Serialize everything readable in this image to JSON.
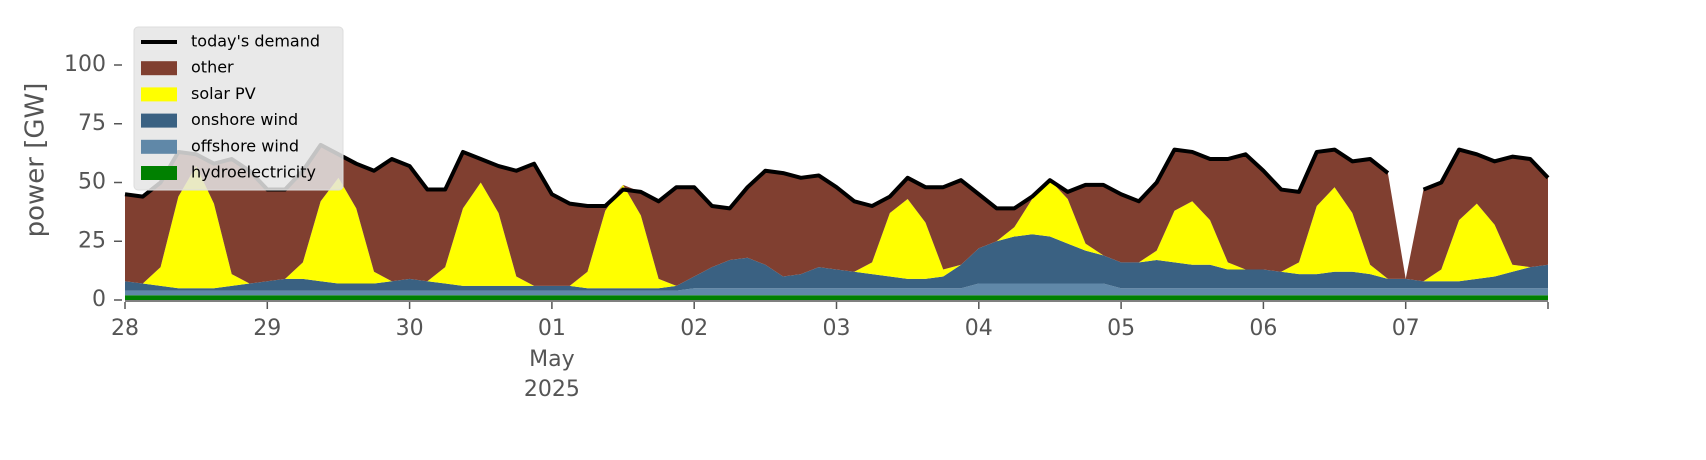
{
  "chart_data": {
    "type": "area",
    "ylabel": "power [GW]",
    "xlim": [
      "2025-04-28",
      "2025-05-08"
    ],
    "xticks": [
      {
        "value": "2025-04-28",
        "label": "28"
      },
      {
        "value": "2025-04-29",
        "label": "29"
      },
      {
        "value": "2025-04-30",
        "label": "30"
      },
      {
        "value": "2025-05-01",
        "label": "01"
      },
      {
        "value": "2025-05-02",
        "label": "02"
      },
      {
        "value": "2025-05-03",
        "label": "03"
      },
      {
        "value": "2025-05-04",
        "label": "04"
      },
      {
        "value": "2025-05-05",
        "label": "05"
      },
      {
        "value": "2025-05-06",
        "label": "06"
      },
      {
        "value": "2025-05-07",
        "label": "07"
      }
    ],
    "x_tick_month": "May",
    "x_tick_year": "2025",
    "ylim": [
      0,
      115
    ],
    "yticks": [
      0,
      25,
      50,
      75,
      100
    ],
    "legend": "upper left",
    "series": [
      {
        "name": "today's demand",
        "type": "line",
        "color": "#000000",
        "values": [
          45,
          44,
          50,
          63,
          62,
          58,
          60,
          55,
          47,
          47,
          55,
          66,
          62,
          58,
          55,
          60,
          57,
          47,
          47,
          63,
          60,
          57,
          55,
          58,
          45,
          41,
          40,
          40,
          47,
          46,
          42,
          48,
          48,
          40,
          39,
          48,
          55,
          54,
          52,
          53,
          48,
          42,
          40,
          44,
          52,
          48,
          48,
          51,
          45,
          39,
          39,
          44,
          51,
          46,
          49,
          49,
          45,
          42,
          50,
          64,
          63,
          60,
          60,
          62,
          55,
          47,
          46,
          63,
          64,
          59,
          60,
          54,
          null,
          47,
          50,
          64,
          62,
          59,
          61,
          60,
          52
        ]
      },
      {
        "name": "other",
        "type": "area",
        "color": "#803f30",
        "values": [
          37,
          37,
          36,
          19,
          5,
          17,
          49,
          48,
          39,
          38,
          39,
          24,
          10,
          19,
          43,
          52,
          48,
          39,
          33,
          24,
          10,
          20,
          45,
          52,
          39,
          35,
          28,
          2,
          0,
          10,
          33,
          42,
          38,
          26,
          22,
          30,
          40,
          44,
          41,
          39,
          35,
          30,
          24,
          7,
          9,
          15,
          35,
          36,
          23,
          14,
          8,
          1,
          0,
          3,
          25,
          30,
          29,
          26,
          29,
          26,
          21,
          26,
          44,
          49,
          42,
          35,
          30,
          23,
          16,
          22,
          45,
          45,
          0,
          39,
          37,
          30,
          21,
          27,
          46,
          46,
          37
        ]
      },
      {
        "name": "solar PV",
        "type": "area",
        "color": "#ffff00",
        "values": [
          0,
          0,
          8,
          39,
          52,
          36,
          5,
          0,
          0,
          0,
          7,
          34,
          45,
          32,
          5,
          0,
          0,
          0,
          7,
          33,
          44,
          31,
          4,
          0,
          0,
          0,
          7,
          33,
          44,
          31,
          4,
          0,
          0,
          0,
          0,
          0,
          0,
          0,
          0,
          0,
          0,
          0,
          5,
          27,
          34,
          24,
          3,
          0,
          0,
          0,
          4,
          15,
          24,
          19,
          3,
          0,
          0,
          0,
          4,
          22,
          27,
          19,
          3,
          0,
          0,
          0,
          5,
          29,
          36,
          25,
          4,
          0,
          0,
          0,
          5,
          26,
          32,
          22,
          3,
          0,
          0
        ]
      },
      {
        "name": "onshore wind",
        "type": "area",
        "color": "#3a6182",
        "values": [
          4,
          3,
          2,
          1,
          1,
          1,
          2,
          3,
          4,
          5,
          5,
          4,
          3,
          3,
          3,
          4,
          5,
          4,
          3,
          2,
          2,
          2,
          2,
          2,
          2,
          2,
          1,
          1,
          1,
          1,
          1,
          2,
          5,
          9,
          12,
          13,
          10,
          5,
          6,
          9,
          8,
          7,
          6,
          5,
          4,
          4,
          5,
          10,
          15,
          18,
          20,
          21,
          20,
          17,
          14,
          12,
          11,
          11,
          12,
          11,
          10,
          10,
          8,
          8,
          8,
          7,
          6,
          6,
          7,
          7,
          6,
          4,
          4,
          3,
          3,
          3,
          4,
          5,
          7,
          9,
          10
        ]
      },
      {
        "name": "offshore wind",
        "type": "area",
        "color": "#6088a8",
        "values": [
          2,
          2,
          2,
          2,
          2,
          2,
          2,
          2,
          2,
          2,
          2,
          2,
          2,
          2,
          2,
          2,
          2,
          2,
          2,
          2,
          2,
          2,
          2,
          2,
          2,
          2,
          2,
          2,
          2,
          2,
          2,
          2,
          3,
          3,
          3,
          3,
          3,
          3,
          3,
          3,
          3,
          3,
          3,
          3,
          3,
          3,
          3,
          3,
          5,
          5,
          5,
          5,
          5,
          5,
          5,
          5,
          3,
          3,
          3,
          3,
          3,
          3,
          3,
          3,
          3,
          3,
          3,
          3,
          3,
          3,
          3,
          3,
          3,
          3,
          3,
          3,
          3,
          3,
          3,
          3,
          3
        ]
      },
      {
        "name": "hydroelectricity",
        "type": "area",
        "color": "#008000",
        "values": [
          2,
          2,
          2,
          2,
          2,
          2,
          2,
          2,
          2,
          2,
          2,
          2,
          2,
          2,
          2,
          2,
          2,
          2,
          2,
          2,
          2,
          2,
          2,
          2,
          2,
          2,
          2,
          2,
          2,
          2,
          2,
          2,
          2,
          2,
          2,
          2,
          2,
          2,
          2,
          2,
          2,
          2,
          2,
          2,
          2,
          2,
          2,
          2,
          2,
          2,
          2,
          2,
          2,
          2,
          2,
          2,
          2,
          2,
          2,
          2,
          2,
          2,
          2,
          2,
          2,
          2,
          2,
          2,
          2,
          2,
          2,
          2,
          2,
          2,
          2,
          2,
          2,
          2,
          2,
          2,
          2
        ]
      }
    ]
  }
}
